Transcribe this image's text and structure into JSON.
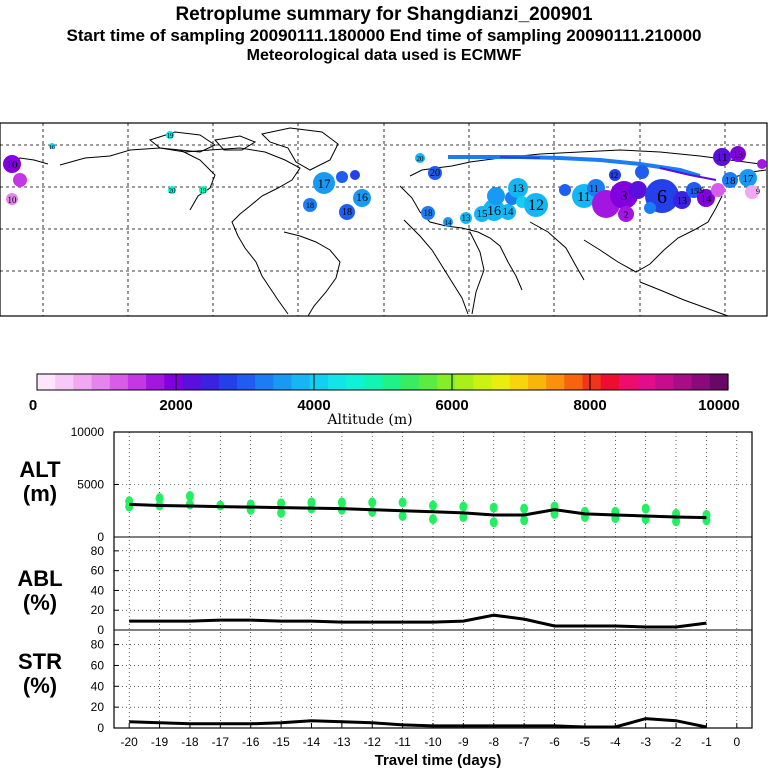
{
  "header": {
    "title": "Retroplume summary for Shangdianzi_200901",
    "sampling": "Start time of sampling 20090111.180000     End time of sampling 20090111.210000",
    "met": "Meteorological data used is ECMWF"
  },
  "colors": {
    "scale": [
      "#fde6fd",
      "#f8c8f8",
      "#f0a8f0",
      "#e684ee",
      "#d85ce8",
      "#c536e4",
      "#a315e0",
      "#8200e0",
      "#5a0fdc",
      "#3a22e0",
      "#2440ea",
      "#1f5cf2",
      "#1b7df4",
      "#189af4",
      "#15b6f4",
      "#13cff2",
      "#11e5ea",
      "#0ff2d6",
      "#10f4b4",
      "#1ef288",
      "#38ee60",
      "#5aec40",
      "#84ee26",
      "#aaf018",
      "#ccf212",
      "#eaee0c",
      "#f8d40a",
      "#fab40a",
      "#fa900c",
      "#f8640e",
      "#f23418",
      "#ee0c30",
      "#f00c6a",
      "#e20c8c",
      "#c80c8e",
      "#a80c86",
      "#8a0a7c",
      "#6a0866"
    ],
    "trajectory_points": "#22f060"
  },
  "colorbar": {
    "ticks": [
      "0",
      "2000",
      "4000",
      "6000",
      "8000",
      "10000"
    ],
    "label": "Altitude (m)"
  },
  "map": {
    "labels": [
      {
        "n": "10"
      },
      {
        "n": "10"
      },
      {
        "n": "19"
      },
      {
        "n": "16"
      },
      {
        "n": "20"
      },
      {
        "n": "19"
      },
      {
        "n": "18"
      },
      {
        "n": "17"
      },
      {
        "n": "18"
      },
      {
        "n": "16"
      },
      {
        "n": "20"
      },
      {
        "n": "20"
      },
      {
        "n": "18"
      },
      {
        "n": "14"
      },
      {
        "n": "13"
      },
      {
        "n": "15"
      },
      {
        "n": "16"
      },
      {
        "n": "14"
      },
      {
        "n": "13"
      },
      {
        "n": "12"
      },
      {
        "n": "11"
      },
      {
        "n": "6"
      },
      {
        "n": "3"
      },
      {
        "n": "2"
      },
      {
        "n": "12"
      },
      {
        "n": "11"
      },
      {
        "n": "18"
      },
      {
        "n": "17"
      },
      {
        "n": "14"
      },
      {
        "n": "19"
      },
      {
        "n": "13"
      },
      {
        "n": "15"
      },
      {
        "n": "11"
      },
      {
        "n": "13"
      },
      {
        "n": "9"
      }
    ]
  },
  "chart_data": [
    {
      "type": "line",
      "panel": "ALT",
      "title": "Retroplume summary for Shangdianzi_200901",
      "ylabel": "ALT (m)",
      "xlabel": "Travel time (days)",
      "ylim": [
        0,
        10000
      ],
      "yticks": [
        "0",
        "5000",
        "10000"
      ],
      "x": [
        -20,
        -19,
        -18,
        -17,
        -16,
        -15,
        -14,
        -13,
        -12,
        -11,
        -10,
        -9,
        -8,
        -7,
        -6,
        -5,
        -4,
        -3,
        -2,
        -1
      ],
      "series": [
        {
          "name": "mean altitude",
          "values": [
            3100,
            3000,
            2950,
            2900,
            2850,
            2800,
            2750,
            2700,
            2600,
            2500,
            2400,
            2300,
            2100,
            2100,
            2600,
            2200,
            2100,
            2000,
            1900,
            1850
          ]
        }
      ],
      "points": [
        {
          "x": -20,
          "y": 3400
        },
        {
          "x": -20,
          "y": 2900
        },
        {
          "x": -19,
          "y": 3700
        },
        {
          "x": -19,
          "y": 3000
        },
        {
          "x": -18,
          "y": 3900
        },
        {
          "x": -18,
          "y": 3100
        },
        {
          "x": -17,
          "y": 3000
        },
        {
          "x": -16,
          "y": 3100
        },
        {
          "x": -16,
          "y": 2600
        },
        {
          "x": -15,
          "y": 3200
        },
        {
          "x": -15,
          "y": 2300
        },
        {
          "x": -14,
          "y": 3300
        },
        {
          "x": -14,
          "y": 2700
        },
        {
          "x": -13,
          "y": 3300
        },
        {
          "x": -13,
          "y": 2600
        },
        {
          "x": -12,
          "y": 3300
        },
        {
          "x": -12,
          "y": 2400
        },
        {
          "x": -11,
          "y": 3300
        },
        {
          "x": -11,
          "y": 2000
        },
        {
          "x": -10,
          "y": 3000
        },
        {
          "x": -10,
          "y": 1700
        },
        {
          "x": -9,
          "y": 2900
        },
        {
          "x": -9,
          "y": 1900
        },
        {
          "x": -8,
          "y": 2800
        },
        {
          "x": -8,
          "y": 1400
        },
        {
          "x": -7,
          "y": 2700
        },
        {
          "x": -7,
          "y": 1600
        },
        {
          "x": -6,
          "y": 2900
        },
        {
          "x": -6,
          "y": 2200
        },
        {
          "x": -5,
          "y": 2400
        },
        {
          "x": -5,
          "y": 1900
        },
        {
          "x": -4,
          "y": 2400
        },
        {
          "x": -4,
          "y": 1800
        },
        {
          "x": -3,
          "y": 2700
        },
        {
          "x": -3,
          "y": 1700
        },
        {
          "x": -2,
          "y": 2200
        },
        {
          "x": -2,
          "y": 1500
        },
        {
          "x": -1,
          "y": 2100
        },
        {
          "x": -1,
          "y": 1600
        }
      ]
    },
    {
      "type": "line",
      "panel": "ABL",
      "ylabel": "ABL (%)",
      "ylim": [
        0,
        90
      ],
      "yticks": [
        "0",
        "20",
        "40",
        "60",
        "80"
      ],
      "x": [
        -20,
        -19,
        -18,
        -17,
        -16,
        -15,
        -14,
        -13,
        -12,
        -11,
        -10,
        -9,
        -8,
        -7,
        -6,
        -5,
        -4,
        -3,
        -2,
        -1
      ],
      "series": [
        {
          "name": "ABL",
          "values": [
            9,
            9,
            9,
            10,
            10,
            9,
            9,
            8,
            8,
            8,
            8,
            9,
            15,
            11,
            4,
            4,
            4,
            3,
            3,
            7
          ]
        }
      ]
    },
    {
      "type": "line",
      "panel": "STR",
      "ylabel": "STR (%)",
      "xlabel": "Travel time (days)",
      "ylim": [
        0,
        90
      ],
      "yticks": [
        "0",
        "20",
        "40",
        "60",
        "80"
      ],
      "xticks": [
        "-20",
        "-19",
        "-18",
        "-17",
        "-16",
        "-15",
        "-14",
        "-13",
        "-12",
        "-11",
        "-10",
        "-9",
        "-8",
        "-7",
        "-6",
        "-5",
        "-4",
        "-3",
        "-2",
        "-1",
        "0"
      ],
      "x": [
        -20,
        -19,
        -18,
        -17,
        -16,
        -15,
        -14,
        -13,
        -12,
        -11,
        -10,
        -9,
        -8,
        -7,
        -6,
        -5,
        -4,
        -3,
        -2,
        -1
      ],
      "series": [
        {
          "name": "STR",
          "values": [
            6,
            5,
            4,
            4,
            4,
            5,
            7,
            6,
            5,
            3,
            2,
            2,
            2,
            2,
            2,
            1,
            1,
            9,
            7,
            1
          ]
        }
      ]
    }
  ],
  "panels": {
    "alt": {
      "label1": "ALT",
      "label2": "(m)"
    },
    "abl": {
      "label1": "ABL",
      "label2": "(%)"
    },
    "str": {
      "label1": "STR",
      "label2": "(%)"
    }
  }
}
